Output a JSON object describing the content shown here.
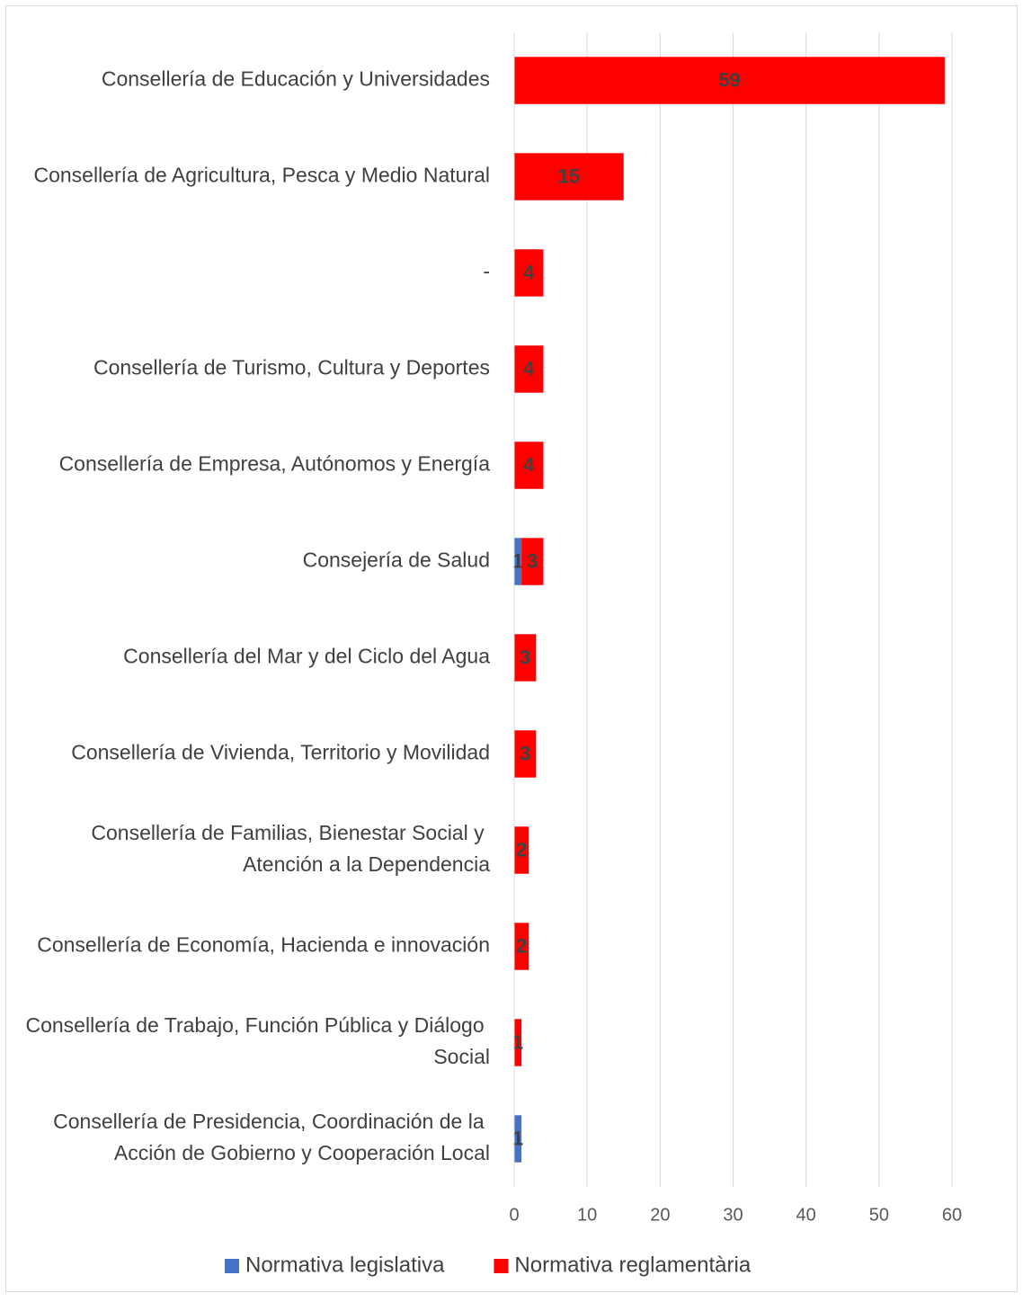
{
  "chart_data": {
    "type": "bar",
    "orientation": "horizontal",
    "stacked": true,
    "categories": [
      "Consellería de Educación y Universidades",
      "Consellería de Agricultura, Pesca y Medio Natural",
      "-",
      "Consellería de Turismo, Cultura y Deportes",
      "Consellería de Empresa, Autónomos y Energía",
      "Consejería de Salud",
      "Consellería del Mar y del Ciclo del Agua",
      "Consellería de Vivienda, Territorio y Movilidad",
      "Consellería de Familias, Bienestar Social y Atención a la Dependencia",
      "Consellería de Economía, Hacienda e innovación",
      "Consellería de Trabajo, Función Pública y Diálogo Social",
      "Consellería de Presidencia, Coordinación de la Acción de Gobierno y Cooperación Local"
    ],
    "series": [
      {
        "name": "Normativa legislativa",
        "color": "#4472c4",
        "values": [
          null,
          null,
          null,
          null,
          null,
          1,
          null,
          null,
          null,
          null,
          null,
          1
        ]
      },
      {
        "name": "Normativa reglamentària",
        "color": "#ff0000",
        "values": [
          59,
          15,
          4,
          4,
          4,
          3,
          3,
          3,
          2,
          2,
          1,
          null
        ]
      }
    ],
    "xlim": [
      0,
      60
    ],
    "xticks": [
      0,
      10,
      20,
      30,
      40,
      50,
      60
    ],
    "grid": true,
    "legend": "bottom"
  }
}
